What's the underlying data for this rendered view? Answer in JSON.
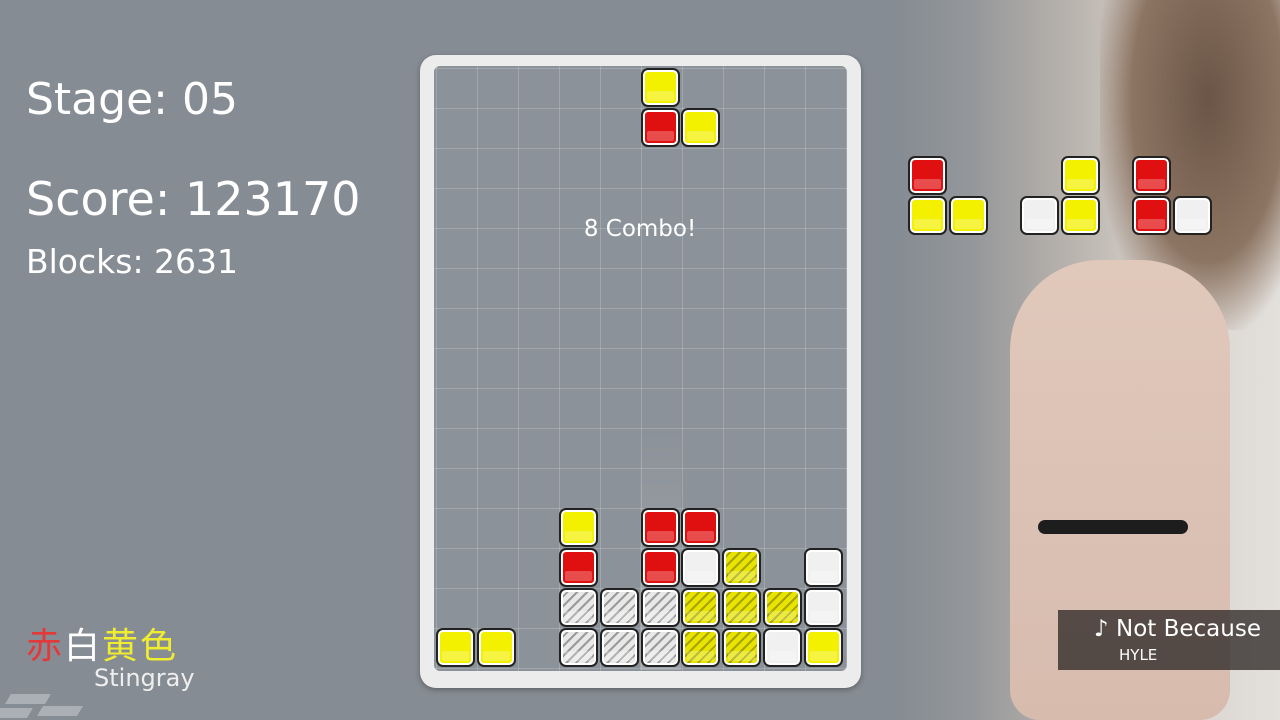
{
  "hud": {
    "stage": "Stage: 05",
    "score": "Score: 123170",
    "blocks": "Blocks: 2631"
  },
  "combo": "8 Combo!",
  "colors": {
    "Y": "#f3f000",
    "R": "#e01010",
    "W": "#f0f0f0",
    "y": "yellow-striped",
    "w": "white-striped"
  },
  "board": {
    "columns": 10,
    "rows": 15,
    "grid": [
      ".....Y....",
      ".....RY...",
      "..........",
      "..........",
      "..........",
      "..........",
      "..........",
      "..........",
      "..........",
      "..........",
      "..........",
      "...Y.RR...",
      "...R.RWy.W",
      "...wwwyyyW",
      "YY.wwwyyWY"
    ]
  },
  "next_pieces": [
    [
      "R.",
      "YY"
    ],
    [
      ".Y",
      "WY"
    ],
    [
      "R.",
      "RW"
    ]
  ],
  "logo": {
    "kanji": [
      "赤",
      "白",
      "黄",
      "色"
    ],
    "subtitle": "Stingray"
  },
  "now_playing": {
    "icon": "music-note-icon",
    "note": "♪",
    "title": "Not Because",
    "artist": "HYLE"
  }
}
